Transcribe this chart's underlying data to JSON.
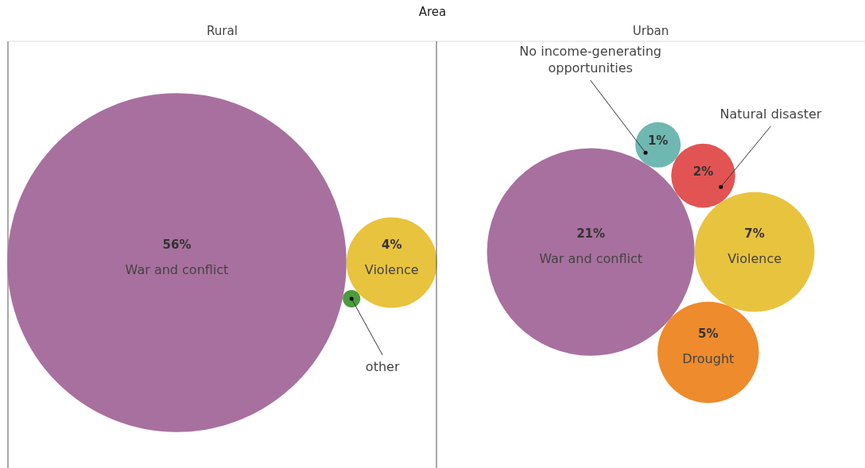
{
  "chart_data": [
    {
      "type": "other",
      "title": "Rural",
      "annotations": [
        "Area"
      ],
      "categories": [
        "War and conflict",
        "Violence",
        "other"
      ],
      "values": [
        56,
        4,
        null
      ],
      "value_labels": [
        "56%",
        "4%",
        null
      ],
      "colors": [
        "#a8709e",
        "#e8c33e",
        "#4c9c3f"
      ]
    },
    {
      "type": "other",
      "title": "Urban",
      "categories": [
        "War and conflict",
        "Violence",
        "Drought",
        "Natural disaster",
        "No income-generating opportunities"
      ],
      "values": [
        21,
        7,
        5,
        2,
        1
      ],
      "value_labels": [
        "21%",
        "7%",
        "5%",
        "2%",
        "1%"
      ],
      "colors": [
        "#a8709e",
        "#e8c33e",
        "#ee8b2c",
        "#e25453",
        "#6fb8b1"
      ]
    }
  ]
}
